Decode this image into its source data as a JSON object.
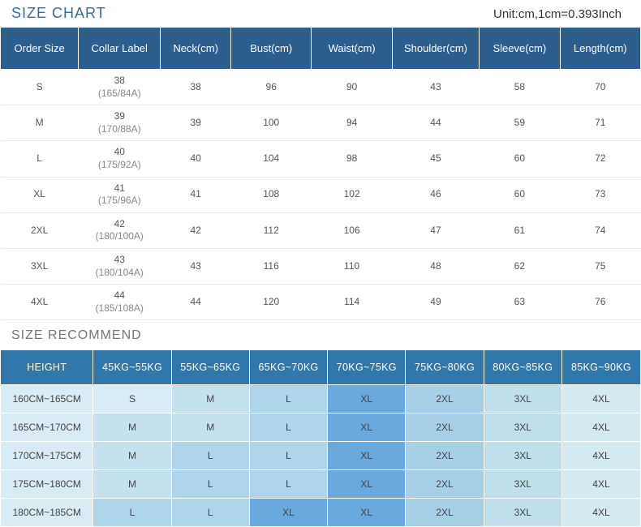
{
  "header": {
    "title": "SIZE CHART",
    "unit": "Unit:cm,1cm=0.393Inch"
  },
  "sizeChart": {
    "columns": [
      "Order Size",
      "Collar Label",
      "Neck(cm)",
      "Bust(cm)",
      "Waist(cm)",
      "Shoulder(cm)",
      "Sleeve(cm)",
      "Length(cm)"
    ],
    "colWidths": [
      "12.2%",
      "12.8%",
      "11%",
      "12.6%",
      "12.6%",
      "13.6%",
      "12.6%",
      "12.6%"
    ],
    "rows": [
      {
        "order": "S",
        "collar_top": "38",
        "collar_sub": "(165/84A)",
        "neck": "38",
        "bust": "96",
        "waist": "90",
        "shoulder": "43",
        "sleeve": "58",
        "length": "70"
      },
      {
        "order": "M",
        "collar_top": "39",
        "collar_sub": "(170/88A)",
        "neck": "39",
        "bust": "100",
        "waist": "94",
        "shoulder": "44",
        "sleeve": "59",
        "length": "71"
      },
      {
        "order": "L",
        "collar_top": "40",
        "collar_sub": "(175/92A)",
        "neck": "40",
        "bust": "104",
        "waist": "98",
        "shoulder": "45",
        "sleeve": "60",
        "length": "72"
      },
      {
        "order": "XL",
        "collar_top": "41",
        "collar_sub": "(175/96A)",
        "neck": "41",
        "bust": "108",
        "waist": "102",
        "shoulder": "46",
        "sleeve": "60",
        "length": "73"
      },
      {
        "order": "2XL",
        "collar_top": "42",
        "collar_sub": "(180/100A)",
        "neck": "42",
        "bust": "112",
        "waist": "106",
        "shoulder": "47",
        "sleeve": "61",
        "length": "74"
      },
      {
        "order": "3XL",
        "collar_top": "43",
        "collar_sub": "(180/104A)",
        "neck": "43",
        "bust": "116",
        "waist": "110",
        "shoulder": "48",
        "sleeve": "62",
        "length": "75"
      },
      {
        "order": "4XL",
        "collar_top": "44",
        "collar_sub": "(185/108A)",
        "neck": "44",
        "bust": "120",
        "waist": "114",
        "shoulder": "49",
        "sleeve": "63",
        "length": "76"
      }
    ]
  },
  "recommend": {
    "title": "SIZE RECOMMEND",
    "columns": [
      "HEIGHT",
      "45KG~55KG",
      "55KG~65KG",
      "65KG~70KG",
      "70KG~75KG",
      "75KG~80KG",
      "80KG~85KG",
      "85KG~90KG"
    ],
    "colWidths": [
      "14.5%",
      "12.2%",
      "12.2%",
      "12.2%",
      "12.2%",
      "12.2%",
      "12.2%",
      "12.3%"
    ],
    "rowLabelBg": "#d9ecf5",
    "cellBgColors": {
      "S": "#d9ecf5",
      "M": "#c5e1ed",
      "L": "#aed6ea",
      "XL": "#6aa9de",
      "2XL": "#a6d0e6",
      "3XL": "#c0dfea",
      "4XL": "#d4e9f0"
    },
    "rows": [
      {
        "label": "160CM~165CM",
        "cells": [
          "S",
          "M",
          "L",
          "XL",
          "2XL",
          "3XL",
          "4XL"
        ]
      },
      {
        "label": "165CM~170CM",
        "cells": [
          "M",
          "M",
          "L",
          "XL",
          "2XL",
          "3XL",
          "4XL"
        ]
      },
      {
        "label": "170CM~175CM",
        "cells": [
          "M",
          "L",
          "L",
          "XL",
          "2XL",
          "3XL",
          "4XL"
        ]
      },
      {
        "label": "175CM~180CM",
        "cells": [
          "M",
          "L",
          "L",
          "XL",
          "2XL",
          "3XL",
          "4XL"
        ]
      },
      {
        "label": "180CM~185CM",
        "cells": [
          "L",
          "L",
          "XL",
          "XL",
          "2XL",
          "3XL",
          "4XL"
        ]
      }
    ]
  },
  "style": {
    "header_bg": "#2d5f8e",
    "header2_bg": "#3077ab",
    "title_color": "#3e6a9b",
    "sec2_title_color": "#757575",
    "row_border": "#e6e6e6"
  }
}
